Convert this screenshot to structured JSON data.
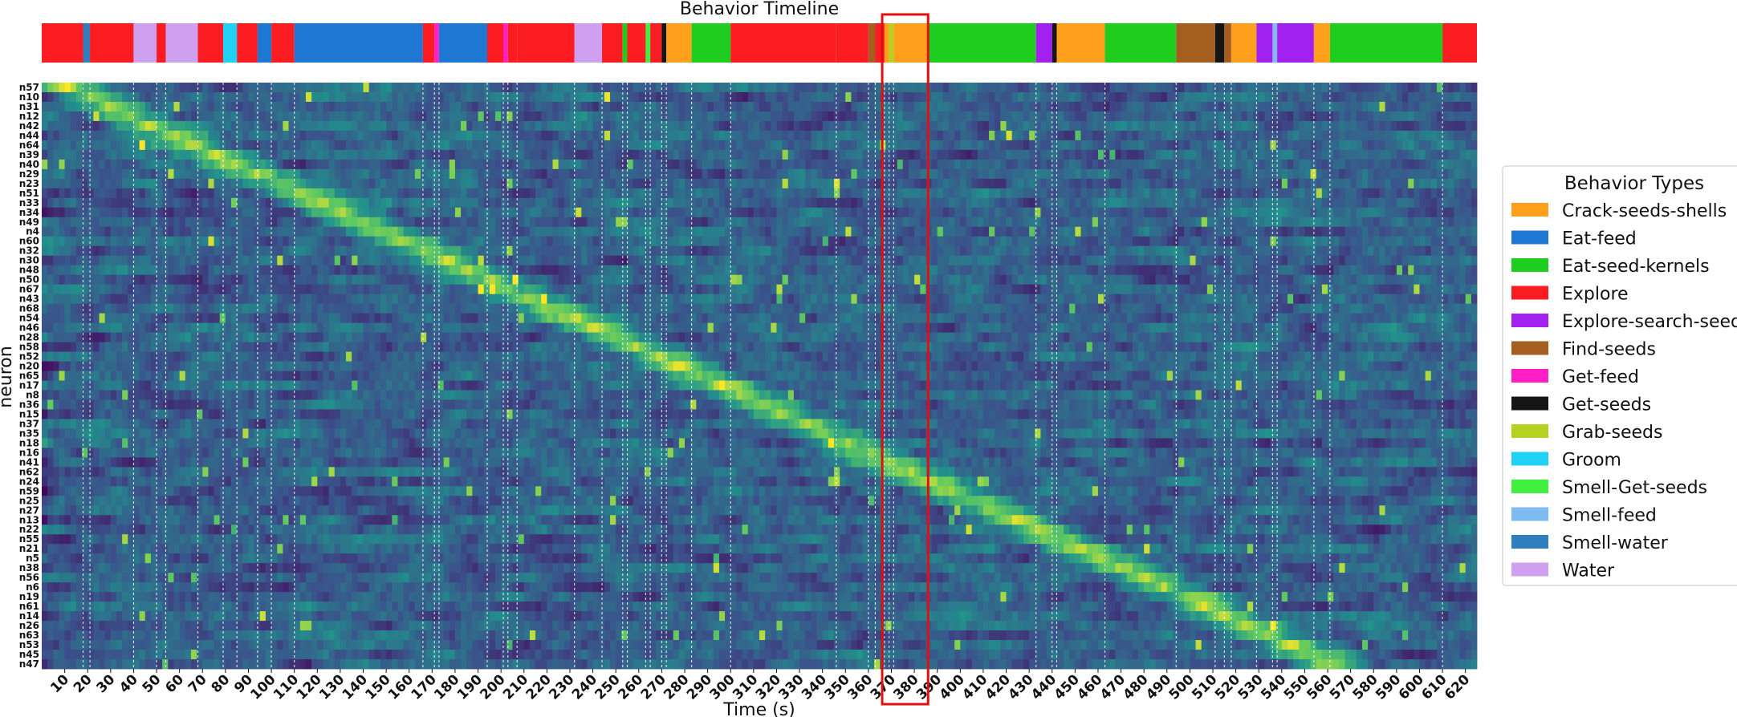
{
  "chart_data": {
    "type": "heatmap",
    "timeline_title": "Behavior Timeline",
    "xlabel": "Time (s)",
    "ylabel": "neuron",
    "xlim": [
      0,
      625
    ],
    "x_ticks": [
      10,
      20,
      30,
      40,
      50,
      60,
      70,
      80,
      90,
      100,
      110,
      120,
      130,
      140,
      150,
      160,
      170,
      180,
      190,
      200,
      210,
      220,
      230,
      240,
      250,
      260,
      270,
      280,
      290,
      300,
      310,
      320,
      330,
      340,
      350,
      360,
      370,
      380,
      390,
      400,
      410,
      420,
      430,
      440,
      450,
      460,
      470,
      480,
      490,
      500,
      510,
      520,
      530,
      540,
      550,
      560,
      570,
      580,
      590,
      600,
      610,
      620
    ],
    "neurons": [
      "n57",
      "n10",
      "n31",
      "n12",
      "n42",
      "n44",
      "n64",
      "n39",
      "n40",
      "n29",
      "n23",
      "n51",
      "n33",
      "n34",
      "n49",
      "n4",
      "n60",
      "n32",
      "n30",
      "n48",
      "n50",
      "n67",
      "n43",
      "n68",
      "n54",
      "n46",
      "n28",
      "n58",
      "n52",
      "n20",
      "n65",
      "n17",
      "n8",
      "n36",
      "n15",
      "n37",
      "n35",
      "n18",
      "n16",
      "n41",
      "n62",
      "n24",
      "n59",
      "n25",
      "n27",
      "n13",
      "n22",
      "n55",
      "n21",
      "n5",
      "n38",
      "n56",
      "n6",
      "n19",
      "n61",
      "n14",
      "n26",
      "n63",
      "n53",
      "n45",
      "n47"
    ],
    "colorscale": [
      "#440154",
      "#3b528b",
      "#21918c",
      "#5ec962",
      "#fde725"
    ],
    "behaviors": [
      {
        "name": "Crack-seeds-shells",
        "color": "#ff9f1c"
      },
      {
        "name": "Eat-feed",
        "color": "#1f77d4"
      },
      {
        "name": "Eat-seed-kernels",
        "color": "#1fcd1f"
      },
      {
        "name": "Explore",
        "color": "#fb1c22"
      },
      {
        "name": "Explore-search-seeds",
        "color": "#a220f0"
      },
      {
        "name": "Find-seeds",
        "color": "#a65e20"
      },
      {
        "name": "Get-feed",
        "color": "#ff1fc6"
      },
      {
        "name": "Get-seeds",
        "color": "#151515"
      },
      {
        "name": "Grab-seeds",
        "color": "#b4d21f"
      },
      {
        "name": "Groom",
        "color": "#1fd1f5"
      },
      {
        "name": "Smell-Get-seeds",
        "color": "#40f040"
      },
      {
        "name": "Smell-feed",
        "color": "#7fbaf0"
      },
      {
        "name": "Smell-water",
        "color": "#2f7fbf"
      },
      {
        "name": "Water",
        "color": "#cfa0f0"
      }
    ],
    "timeline": [
      {
        "start": 0,
        "end": 18,
        "behavior": "Explore"
      },
      {
        "start": 18,
        "end": 21,
        "behavior": "Smell-water"
      },
      {
        "start": 21,
        "end": 40,
        "behavior": "Explore"
      },
      {
        "start": 40,
        "end": 50,
        "behavior": "Water"
      },
      {
        "start": 50,
        "end": 54,
        "behavior": "Explore"
      },
      {
        "start": 54,
        "end": 68,
        "behavior": "Water"
      },
      {
        "start": 68,
        "end": 79,
        "behavior": "Explore"
      },
      {
        "start": 79,
        "end": 85,
        "behavior": "Groom"
      },
      {
        "start": 85,
        "end": 94,
        "behavior": "Explore"
      },
      {
        "start": 94,
        "end": 100,
        "behavior": "Eat-feed"
      },
      {
        "start": 100,
        "end": 110,
        "behavior": "Explore"
      },
      {
        "start": 110,
        "end": 166,
        "behavior": "Eat-feed"
      },
      {
        "start": 166,
        "end": 171,
        "behavior": "Explore"
      },
      {
        "start": 171,
        "end": 173,
        "behavior": "Get-feed"
      },
      {
        "start": 173,
        "end": 194,
        "behavior": "Eat-feed"
      },
      {
        "start": 194,
        "end": 201,
        "behavior": "Explore"
      },
      {
        "start": 201,
        "end": 203,
        "behavior": "Get-feed"
      },
      {
        "start": 203,
        "end": 207,
        "behavior": "Explore"
      },
      {
        "start": 207,
        "end": 232,
        "behavior": "Explore"
      },
      {
        "start": 232,
        "end": 244,
        "behavior": "Water"
      },
      {
        "start": 244,
        "end": 253,
        "behavior": "Explore"
      },
      {
        "start": 253,
        "end": 255,
        "behavior": "Eat-seed-kernels"
      },
      {
        "start": 255,
        "end": 263,
        "behavior": "Explore"
      },
      {
        "start": 263,
        "end": 265,
        "behavior": "Smell-Get-seeds"
      },
      {
        "start": 265,
        "end": 270,
        "behavior": "Explore"
      },
      {
        "start": 270,
        "end": 272,
        "behavior": "Get-seeds"
      },
      {
        "start": 272,
        "end": 283,
        "behavior": "Crack-seeds-shells"
      },
      {
        "start": 283,
        "end": 300,
        "behavior": "Eat-seed-kernels"
      },
      {
        "start": 300,
        "end": 346,
        "behavior": "Explore"
      },
      {
        "start": 346,
        "end": 360,
        "behavior": "Explore"
      },
      {
        "start": 360,
        "end": 363,
        "behavior": "Find-seeds"
      },
      {
        "start": 363,
        "end": 367,
        "behavior": "Explore"
      },
      {
        "start": 367,
        "end": 369,
        "behavior": "Crack-seeds-shells"
      },
      {
        "start": 369,
        "end": 371,
        "behavior": "Grab-seeds"
      },
      {
        "start": 371,
        "end": 386,
        "behavior": "Crack-seeds-shells"
      },
      {
        "start": 386,
        "end": 433,
        "behavior": "Eat-seed-kernels"
      },
      {
        "start": 433,
        "end": 440,
        "behavior": "Explore-search-seeds"
      },
      {
        "start": 440,
        "end": 442,
        "behavior": "Get-seeds"
      },
      {
        "start": 442,
        "end": 463,
        "behavior": "Crack-seeds-shells"
      },
      {
        "start": 463,
        "end": 494,
        "behavior": "Eat-seed-kernels"
      },
      {
        "start": 494,
        "end": 511,
        "behavior": "Find-seeds"
      },
      {
        "start": 511,
        "end": 515,
        "behavior": "Get-seeds"
      },
      {
        "start": 515,
        "end": 518,
        "behavior": "Find-seeds"
      },
      {
        "start": 518,
        "end": 529,
        "behavior": "Crack-seeds-shells"
      },
      {
        "start": 529,
        "end": 536,
        "behavior": "Explore-search-seeds"
      },
      {
        "start": 536,
        "end": 538,
        "behavior": "Smell-feed"
      },
      {
        "start": 538,
        "end": 554,
        "behavior": "Explore-search-seeds"
      },
      {
        "start": 554,
        "end": 561,
        "behavior": "Crack-seeds-shells"
      },
      {
        "start": 561,
        "end": 610,
        "behavior": "Eat-seed-kernels"
      },
      {
        "start": 610,
        "end": 625,
        "behavior": "Explore"
      }
    ],
    "highlight": {
      "start": 366,
      "end": 386,
      "color": "#e01010"
    },
    "legend": {
      "title": "Behavior Types",
      "position": "right"
    }
  }
}
